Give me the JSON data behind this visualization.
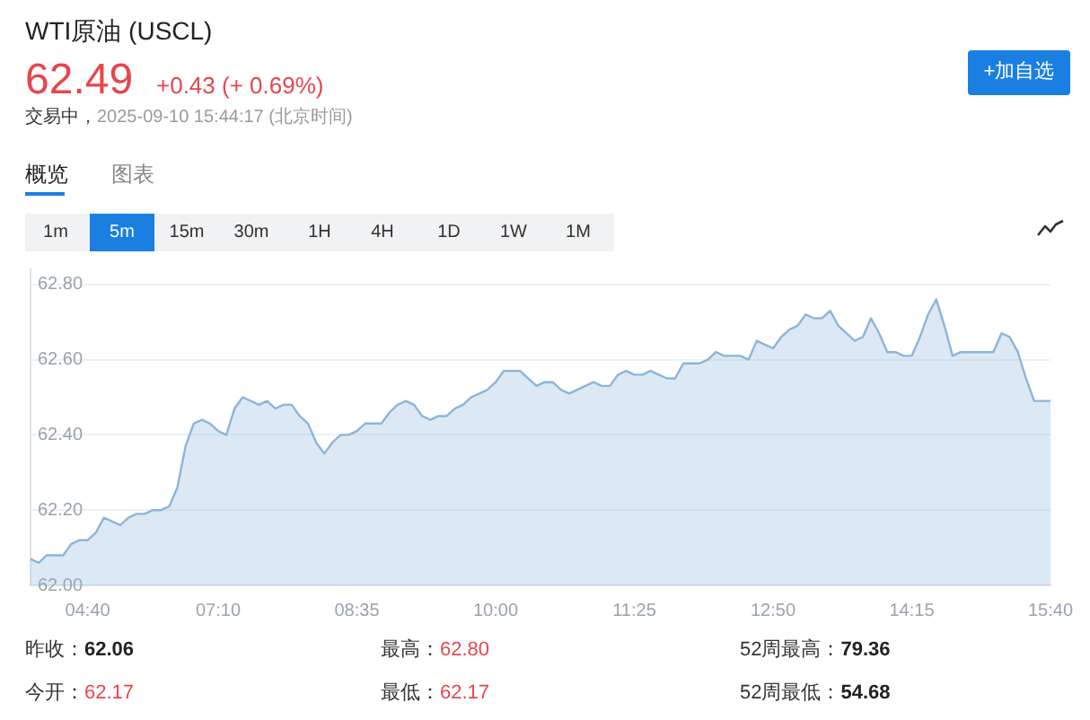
{
  "chart_data": {
    "type": "area",
    "title": "WTI原油 (USCL)",
    "categories": [
      null,
      null,
      null,
      null,
      null,
      null,
      null,
      "04:40",
      null,
      null,
      null,
      null,
      null,
      null,
      null,
      null,
      null,
      null,
      null,
      null,
      null,
      null,
      null,
      "07:10",
      null,
      null,
      null,
      null,
      null,
      null,
      null,
      null,
      null,
      null,
      null,
      null,
      null,
      null,
      null,
      null,
      "08:35",
      null,
      null,
      null,
      null,
      null,
      null,
      null,
      null,
      null,
      null,
      null,
      null,
      null,
      null,
      null,
      null,
      "10:00",
      null,
      null,
      null,
      null,
      null,
      null,
      null,
      null,
      null,
      null,
      null,
      null,
      null,
      null,
      null,
      null,
      "11:25",
      null,
      null,
      null,
      null,
      null,
      null,
      null,
      null,
      null,
      null,
      null,
      null,
      null,
      null,
      null,
      null,
      "12:50",
      null,
      null,
      null,
      null,
      null,
      null,
      null,
      null,
      null,
      null,
      null,
      null,
      null,
      null,
      null,
      null,
      "14:15",
      null,
      null,
      null,
      null,
      null,
      null,
      null,
      null,
      null,
      null,
      null,
      null,
      null,
      null,
      null,
      null,
      "15:40"
    ],
    "series": [
      {
        "color": "#8cb5d9",
        "values": [
          62.07,
          62.06,
          62.08,
          62.08,
          62.08,
          62.11,
          62.12,
          62.12,
          62.14,
          62.18,
          62.17,
          62.16,
          62.18,
          62.19,
          62.19,
          62.2,
          62.2,
          62.21,
          62.26,
          62.37,
          62.43,
          62.44,
          62.43,
          62.41,
          62.4,
          62.47,
          62.5,
          62.49,
          62.48,
          62.49,
          62.47,
          62.48,
          62.48,
          62.45,
          62.43,
          62.38,
          62.35,
          62.38,
          62.4,
          62.4,
          62.41,
          62.43,
          62.43,
          62.43,
          62.46,
          62.48,
          62.49,
          62.48,
          62.45,
          62.44,
          62.45,
          62.45,
          62.47,
          62.48,
          62.5,
          62.51,
          62.52,
          62.54,
          62.57,
          62.57,
          62.57,
          62.55,
          62.53,
          62.54,
          62.54,
          62.52,
          62.51,
          62.52,
          62.53,
          62.54,
          62.53,
          62.53,
          62.56,
          62.57,
          62.56,
          62.56,
          62.57,
          62.56,
          62.55,
          62.55,
          62.59,
          62.59,
          62.59,
          62.6,
          62.62,
          62.61,
          62.61,
          62.61,
          62.6,
          62.65,
          62.64,
          62.63,
          62.66,
          62.68,
          62.69,
          62.72,
          62.71,
          62.71,
          62.73,
          62.69,
          62.67,
          62.65,
          62.66,
          62.71,
          62.67,
          62.62,
          62.62,
          62.61,
          62.61,
          62.66,
          62.72,
          62.76,
          62.69,
          62.61,
          62.62,
          62.62,
          62.62,
          62.62,
          62.62,
          62.67,
          62.66,
          62.62,
          62.55,
          62.49,
          62.49,
          62.49
        ]
      }
    ],
    "ylim": [
      62.0,
      62.84
    ],
    "yticks": [
      {
        "value": 62.0,
        "label": "62.00"
      },
      {
        "value": 62.2,
        "label": "62.20"
      },
      {
        "value": 62.4,
        "label": "62.40"
      },
      {
        "value": 62.6,
        "label": "62.60"
      },
      {
        "value": 62.8,
        "label": "62.80"
      }
    ],
    "grid": "y",
    "annotations": [
      "62.49",
      "+0.43 (+ 0.69%)",
      "交易中，",
      "2025-09-10 15:44:17 (北京时间)",
      "+加自选",
      "概览",
      "图表",
      "1m",
      "5m",
      "15m",
      "30m",
      "1H",
      "4H",
      "1D",
      "1W",
      "1M",
      "昨收：",
      "62.06",
      "最高：",
      "62.80",
      "52周最高：",
      "79.36",
      "今开：",
      "62.17",
      "最低：",
      "62.17",
      "52周最低：",
      "54.68"
    ]
  }
}
